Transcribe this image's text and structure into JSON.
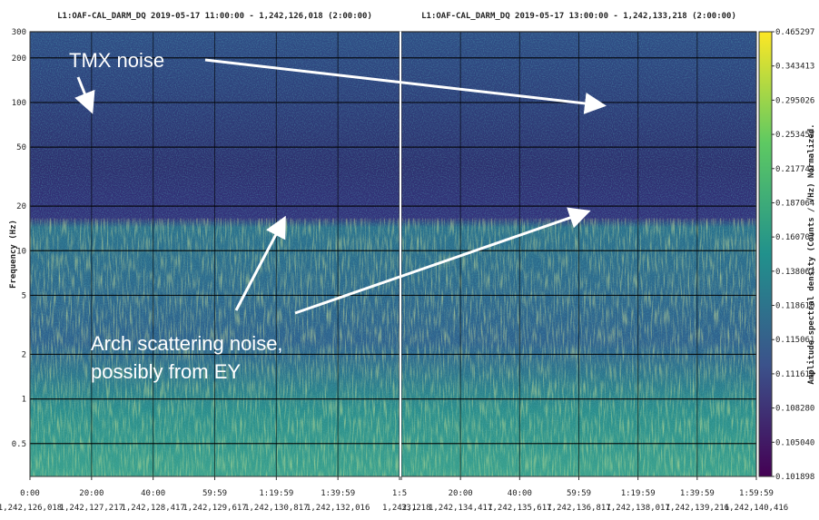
{
  "chart_data": [
    {
      "type": "spectrogram",
      "title": "L1:OAF-CAL_DARM_DQ 2019-05-17 11:00:00 - 1,242,126,018 (2:00:00)",
      "ylabel": "Frequency (Hz)",
      "yscale": "log",
      "ylim": [
        0.3,
        300
      ],
      "yticks": [
        0.5,
        1,
        2,
        5,
        10,
        20,
        50,
        100,
        200,
        300
      ],
      "xlim": [
        0,
        120
      ],
      "xticks": [
        {
          "value": 0,
          "label": "0:00"
        },
        {
          "value": 20,
          "label": "20:00"
        },
        {
          "value": 40,
          "label": "40:00"
        },
        {
          "value": 60,
          "label": "59:59"
        },
        {
          "value": 80,
          "label": "1:19:59"
        },
        {
          "value": 100,
          "label": "1:39:59"
        },
        {
          "value": 120,
          "label": "1:5"
        }
      ],
      "gps_ticks": [
        {
          "value": 0,
          "label": "1,242,126,018"
        },
        {
          "value": 20,
          "label": "1,242,127,217"
        },
        {
          "value": 40,
          "label": "1,242,128,417"
        },
        {
          "value": 60,
          "label": "1,242,129,617"
        },
        {
          "value": 80,
          "label": "1,242,130,817"
        },
        {
          "value": 100,
          "label": "1,242,132,016"
        },
        {
          "value": 120,
          "label": "1,242,1"
        }
      ],
      "grid": true
    },
    {
      "type": "spectrogram",
      "title": "L1:OAF-CAL_DARM_DQ 2019-05-17 13:00:00 - 1,242,133,218 (2:00:00)",
      "yscale": "log",
      "ylim": [
        0.3,
        300
      ],
      "yticks": [
        0.5,
        1,
        2,
        5,
        10,
        20,
        50,
        100,
        200,
        300
      ],
      "xlim": [
        0,
        120
      ],
      "xticks": [
        {
          "value": 20,
          "label": "20:00"
        },
        {
          "value": 40,
          "label": "40:00"
        },
        {
          "value": 60,
          "label": "59:59"
        },
        {
          "value": 80,
          "label": "1:19:59"
        },
        {
          "value": 100,
          "label": "1:39:59"
        },
        {
          "value": 120,
          "label": "1:59:59"
        }
      ],
      "gps_ticks": [
        {
          "value": 0,
          "label": "33,218"
        },
        {
          "value": 20,
          "label": "1,242,134,417"
        },
        {
          "value": 40,
          "label": "1,242,135,617"
        },
        {
          "value": 60,
          "label": "1,242,136,817"
        },
        {
          "value": 80,
          "label": "1,242,138,017"
        },
        {
          "value": 100,
          "label": "1,242,139,216"
        },
        {
          "value": 120,
          "label": "1,242,140,416"
        }
      ],
      "grid": true,
      "colorbar": {
        "label": "Amplitude spectral density (Counts / √Hz) Normalized.",
        "norm": "boundary",
        "ticks": [
          0.101898,
          {
            "value": 0.10504,
            "label": "0.105040"
          },
          {
            "value": 0.10828,
            "label": "0.108280"
          },
          0.111619,
          0.115061,
          {
            "value": 0.11861,
            "label": "0.118610"
          },
          0.138063,
          0.160707,
          0.187064,
          0.217744,
          0.253457,
          0.295026,
          0.343413,
          0.465297
        ]
      }
    }
  ],
  "annotations": [
    "TMX noise",
    "Arch scattering noise,",
    "possibly from EY"
  ]
}
